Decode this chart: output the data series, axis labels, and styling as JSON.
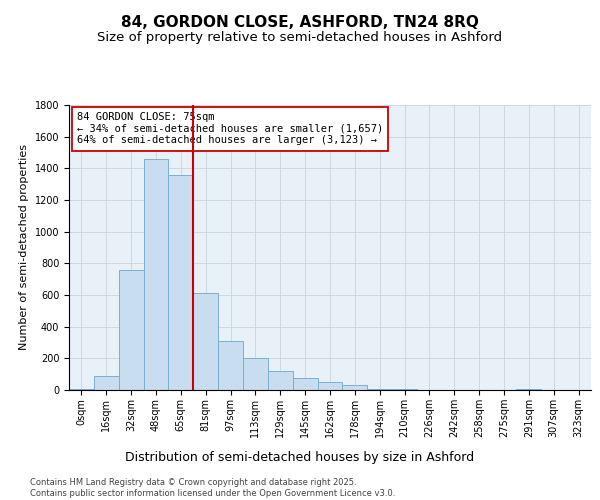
{
  "title": "84, GORDON CLOSE, ASHFORD, TN24 8RQ",
  "subtitle": "Size of property relative to semi-detached houses in Ashford",
  "xlabel": "Distribution of semi-detached houses by size in Ashford",
  "ylabel": "Number of semi-detached properties",
  "bins": [
    "0sqm",
    "16sqm",
    "32sqm",
    "48sqm",
    "65sqm",
    "81sqm",
    "97sqm",
    "113sqm",
    "129sqm",
    "145sqm",
    "162sqm",
    "178sqm",
    "194sqm",
    "210sqm",
    "226sqm",
    "242sqm",
    "258sqm",
    "275sqm",
    "291sqm",
    "307sqm",
    "323sqm"
  ],
  "values": [
    5,
    90,
    760,
    1460,
    1360,
    610,
    310,
    200,
    120,
    75,
    50,
    30,
    5,
    5,
    0,
    0,
    0,
    0,
    5,
    0,
    0
  ],
  "bar_color": "#c9ddf0",
  "bar_edge_color": "#7aafd4",
  "grid_color": "#c8d4e0",
  "background_color": "#e8f0f8",
  "vline_color": "#cc0000",
  "annotation_text": "84 GORDON CLOSE: 75sqm\n← 34% of semi-detached houses are smaller (1,657)\n64% of semi-detached houses are larger (3,123) →",
  "annotation_box_color": "#ffffff",
  "annotation_box_edge": "#cc0000",
  "ylim": [
    0,
    1800
  ],
  "yticks": [
    0,
    200,
    400,
    600,
    800,
    1000,
    1200,
    1400,
    1600,
    1800
  ],
  "footer": "Contains HM Land Registry data © Crown copyright and database right 2025.\nContains public sector information licensed under the Open Government Licence v3.0.",
  "title_fontsize": 11,
  "subtitle_fontsize": 9.5,
  "ylabel_fontsize": 8,
  "xlabel_fontsize": 9,
  "tick_fontsize": 7,
  "annotation_fontsize": 7.5,
  "footer_fontsize": 6
}
